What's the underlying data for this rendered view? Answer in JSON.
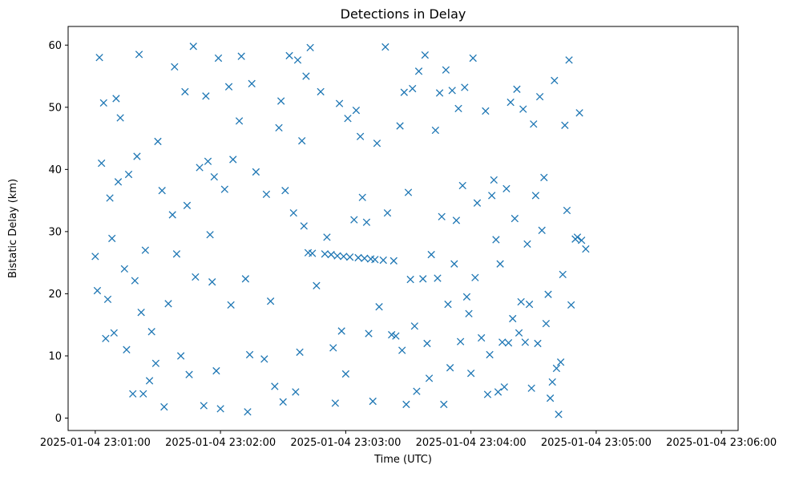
{
  "chart_data": {
    "type": "scatter",
    "title": "Detections in Delay",
    "xlabel": "Time (UTC)",
    "ylabel": "Bistatic Delay (km)",
    "marker": "x",
    "color": "#1f77b4",
    "grid": false,
    "xlim": [
      "2025-01-04 23:00:47",
      "2025-01-04 23:06:08"
    ],
    "ylim": [
      -2,
      63
    ],
    "xticks": [
      "2025-01-04 23:01:00",
      "2025-01-04 23:02:00",
      "2025-01-04 23:03:00",
      "2025-01-04 23:04:00",
      "2025-01-04 23:05:00",
      "2025-01-04 23:06:00"
    ],
    "yticks": [
      "0",
      "10",
      "20",
      "30",
      "40",
      "50",
      "60"
    ],
    "series": [
      {
        "points": [
          [
            "2025-01-04 23:01:00",
            26.0
          ],
          [
            "2025-01-04 23:01:01",
            20.5
          ],
          [
            "2025-01-04 23:01:02",
            58.0
          ],
          [
            "2025-01-04 23:01:04",
            50.7
          ],
          [
            "2025-01-04 23:01:03",
            41.0
          ],
          [
            "2025-01-04 23:01:05",
            12.8
          ],
          [
            "2025-01-04 23:01:06",
            19.1
          ],
          [
            "2025-01-04 23:01:07",
            35.4
          ],
          [
            "2025-01-04 23:01:08",
            28.9
          ],
          [
            "2025-01-04 23:01:09",
            13.7
          ],
          [
            "2025-01-04 23:01:10",
            51.4
          ],
          [
            "2025-01-04 23:01:11",
            38.0
          ],
          [
            "2025-01-04 23:01:12",
            48.3
          ],
          [
            "2025-01-04 23:01:14",
            24.0
          ],
          [
            "2025-01-04 23:01:15",
            11.0
          ],
          [
            "2025-01-04 23:01:16",
            39.2
          ],
          [
            "2025-01-04 23:01:18",
            3.9
          ],
          [
            "2025-01-04 23:01:19",
            22.1
          ],
          [
            "2025-01-04 23:01:20",
            42.1
          ],
          [
            "2025-01-04 23:01:21",
            58.5
          ],
          [
            "2025-01-04 23:01:22",
            17.0
          ],
          [
            "2025-01-04 23:01:23",
            3.9
          ],
          [
            "2025-01-04 23:01:24",
            27.0
          ],
          [
            "2025-01-04 23:01:26",
            6.0
          ],
          [
            "2025-01-04 23:01:27",
            13.9
          ],
          [
            "2025-01-04 23:01:29",
            8.8
          ],
          [
            "2025-01-04 23:01:30",
            44.5
          ],
          [
            "2025-01-04 23:01:32",
            36.6
          ],
          [
            "2025-01-04 23:01:33",
            1.8
          ],
          [
            "2025-01-04 23:01:35",
            18.4
          ],
          [
            "2025-01-04 23:01:37",
            32.7
          ],
          [
            "2025-01-04 23:01:38",
            56.5
          ],
          [
            "2025-01-04 23:01:39",
            26.4
          ],
          [
            "2025-01-04 23:01:41",
            10.0
          ],
          [
            "2025-01-04 23:01:43",
            52.5
          ],
          [
            "2025-01-04 23:01:44",
            34.2
          ],
          [
            "2025-01-04 23:01:45",
            7.0
          ],
          [
            "2025-01-04 23:01:47",
            59.8
          ],
          [
            "2025-01-04 23:01:48",
            22.7
          ],
          [
            "2025-01-04 23:01:50",
            40.3
          ],
          [
            "2025-01-04 23:01:52",
            2.0
          ],
          [
            "2025-01-04 23:01:53",
            51.8
          ],
          [
            "2025-01-04 23:01:54",
            41.3
          ],
          [
            "2025-01-04 23:01:55",
            29.5
          ],
          [
            "2025-01-04 23:01:56",
            21.9
          ],
          [
            "2025-01-04 23:01:57",
            38.8
          ],
          [
            "2025-01-04 23:01:58",
            7.6
          ],
          [
            "2025-01-04 23:01:59",
            57.9
          ],
          [
            "2025-01-04 23:02:00",
            1.5
          ],
          [
            "2025-01-04 23:02:02",
            36.8
          ],
          [
            "2025-01-04 23:02:04",
            53.3
          ],
          [
            "2025-01-04 23:02:05",
            18.2
          ],
          [
            "2025-01-04 23:02:06",
            41.6
          ],
          [
            "2025-01-04 23:02:09",
            47.8
          ],
          [
            "2025-01-04 23:02:10",
            58.2
          ],
          [
            "2025-01-04 23:02:12",
            22.4
          ],
          [
            "2025-01-04 23:02:13",
            1.0
          ],
          [
            "2025-01-04 23:02:14",
            10.2
          ],
          [
            "2025-01-04 23:02:15",
            53.8
          ],
          [
            "2025-01-04 23:02:17",
            39.6
          ],
          [
            "2025-01-04 23:02:21",
            9.5
          ],
          [
            "2025-01-04 23:02:22",
            36.0
          ],
          [
            "2025-01-04 23:02:24",
            18.8
          ],
          [
            "2025-01-04 23:02:26",
            5.1
          ],
          [
            "2025-01-04 23:02:28",
            46.7
          ],
          [
            "2025-01-04 23:02:29",
            51.0
          ],
          [
            "2025-01-04 23:02:30",
            2.6
          ],
          [
            "2025-01-04 23:02:31",
            36.6
          ],
          [
            "2025-01-04 23:02:33",
            58.3
          ],
          [
            "2025-01-04 23:02:35",
            33.0
          ],
          [
            "2025-01-04 23:02:36",
            4.2
          ],
          [
            "2025-01-04 23:02:37",
            57.6
          ],
          [
            "2025-01-04 23:02:38",
            10.6
          ],
          [
            "2025-01-04 23:02:39",
            44.6
          ],
          [
            "2025-01-04 23:02:40",
            30.9
          ],
          [
            "2025-01-04 23:02:41",
            55.0
          ],
          [
            "2025-01-04 23:02:42",
            26.6
          ],
          [
            "2025-01-04 23:02:43",
            59.6
          ],
          [
            "2025-01-04 23:02:44",
            26.5
          ],
          [
            "2025-01-04 23:02:46",
            21.3
          ],
          [
            "2025-01-04 23:02:48",
            52.5
          ],
          [
            "2025-01-04 23:02:50",
            26.4
          ],
          [
            "2025-01-04 23:02:51",
            29.1
          ],
          [
            "2025-01-04 23:02:53",
            26.3
          ],
          [
            "2025-01-04 23:02:54",
            11.3
          ],
          [
            "2025-01-04 23:02:55",
            2.4
          ],
          [
            "2025-01-04 23:02:56",
            26.1
          ],
          [
            "2025-01-04 23:02:57",
            50.6
          ],
          [
            "2025-01-04 23:02:58",
            14.0
          ],
          [
            "2025-01-04 23:02:59",
            26.0
          ],
          [
            "2025-01-04 23:03:00",
            7.1
          ],
          [
            "2025-01-04 23:03:01",
            48.2
          ],
          [
            "2025-01-04 23:03:02",
            25.9
          ],
          [
            "2025-01-04 23:03:04",
            31.9
          ],
          [
            "2025-01-04 23:03:05",
            49.5
          ],
          [
            "2025-01-04 23:03:06",
            25.8
          ],
          [
            "2025-01-04 23:03:07",
            45.3
          ],
          [
            "2025-01-04 23:03:08",
            35.5
          ],
          [
            "2025-01-04 23:03:09",
            25.7
          ],
          [
            "2025-01-04 23:03:10",
            31.5
          ],
          [
            "2025-01-04 23:03:11",
            13.6
          ],
          [
            "2025-01-04 23:03:12",
            25.6
          ],
          [
            "2025-01-04 23:03:13",
            2.7
          ],
          [
            "2025-01-04 23:03:14",
            25.5
          ],
          [
            "2025-01-04 23:03:15",
            44.2
          ],
          [
            "2025-01-04 23:03:16",
            17.9
          ],
          [
            "2025-01-04 23:03:18",
            25.4
          ],
          [
            "2025-01-04 23:03:19",
            59.7
          ],
          [
            "2025-01-04 23:03:20",
            33.0
          ],
          [
            "2025-01-04 23:03:22",
            13.4
          ],
          [
            "2025-01-04 23:03:23",
            25.3
          ],
          [
            "2025-01-04 23:03:24",
            13.2
          ],
          [
            "2025-01-04 23:03:26",
            47.0
          ],
          [
            "2025-01-04 23:03:27",
            10.9
          ],
          [
            "2025-01-04 23:03:28",
            52.4
          ],
          [
            "2025-01-04 23:03:29",
            2.2
          ],
          [
            "2025-01-04 23:03:30",
            36.3
          ],
          [
            "2025-01-04 23:03:31",
            22.3
          ],
          [
            "2025-01-04 23:03:32",
            53.0
          ],
          [
            "2025-01-04 23:03:33",
            14.8
          ],
          [
            "2025-01-04 23:03:34",
            4.3
          ],
          [
            "2025-01-04 23:03:35",
            55.8
          ],
          [
            "2025-01-04 23:03:37",
            22.4
          ],
          [
            "2025-01-04 23:03:38",
            58.4
          ],
          [
            "2025-01-04 23:03:39",
            12.0
          ],
          [
            "2025-01-04 23:03:40",
            6.4
          ],
          [
            "2025-01-04 23:03:41",
            26.3
          ],
          [
            "2025-01-04 23:03:43",
            46.3
          ],
          [
            "2025-01-04 23:03:44",
            22.5
          ],
          [
            "2025-01-04 23:03:45",
            52.3
          ],
          [
            "2025-01-04 23:03:46",
            32.4
          ],
          [
            "2025-01-04 23:03:47",
            2.2
          ],
          [
            "2025-01-04 23:03:48",
            56.0
          ],
          [
            "2025-01-04 23:03:49",
            18.3
          ],
          [
            "2025-01-04 23:03:50",
            8.1
          ],
          [
            "2025-01-04 23:03:51",
            52.7
          ],
          [
            "2025-01-04 23:03:52",
            24.8
          ],
          [
            "2025-01-04 23:03:53",
            31.8
          ],
          [
            "2025-01-04 23:03:54",
            49.8
          ],
          [
            "2025-01-04 23:03:55",
            12.3
          ],
          [
            "2025-01-04 23:03:56",
            37.4
          ],
          [
            "2025-01-04 23:03:57",
            53.2
          ],
          [
            "2025-01-04 23:03:58",
            19.5
          ],
          [
            "2025-01-04 23:03:59",
            16.8
          ],
          [
            "2025-01-04 23:04:00",
            7.2
          ],
          [
            "2025-01-04 23:04:01",
            57.9
          ],
          [
            "2025-01-04 23:04:02",
            22.6
          ],
          [
            "2025-01-04 23:04:03",
            34.6
          ],
          [
            "2025-01-04 23:04:05",
            12.9
          ],
          [
            "2025-01-04 23:04:07",
            49.4
          ],
          [
            "2025-01-04 23:04:08",
            3.8
          ],
          [
            "2025-01-04 23:04:09",
            10.2
          ],
          [
            "2025-01-04 23:04:10",
            35.8
          ],
          [
            "2025-01-04 23:04:11",
            38.3
          ],
          [
            "2025-01-04 23:04:12",
            28.7
          ],
          [
            "2025-01-04 23:04:13",
            4.2
          ],
          [
            "2025-01-04 23:04:14",
            24.8
          ],
          [
            "2025-01-04 23:04:15",
            12.2
          ],
          [
            "2025-01-04 23:04:16",
            5.0
          ],
          [
            "2025-01-04 23:04:17",
            36.9
          ],
          [
            "2025-01-04 23:04:18",
            12.1
          ],
          [
            "2025-01-04 23:04:19",
            50.8
          ],
          [
            "2025-01-04 23:04:20",
            16.0
          ],
          [
            "2025-01-04 23:04:21",
            32.1
          ],
          [
            "2025-01-04 23:04:22",
            52.9
          ],
          [
            "2025-01-04 23:04:23",
            13.7
          ],
          [
            "2025-01-04 23:04:24",
            18.7
          ],
          [
            "2025-01-04 23:04:25",
            49.7
          ],
          [
            "2025-01-04 23:04:26",
            12.2
          ],
          [
            "2025-01-04 23:04:27",
            28.0
          ],
          [
            "2025-01-04 23:04:28",
            18.3
          ],
          [
            "2025-01-04 23:04:29",
            4.8
          ],
          [
            "2025-01-04 23:04:30",
            47.3
          ],
          [
            "2025-01-04 23:04:31",
            35.8
          ],
          [
            "2025-01-04 23:04:32",
            12.0
          ],
          [
            "2025-01-04 23:04:33",
            51.7
          ],
          [
            "2025-01-04 23:04:34",
            30.2
          ],
          [
            "2025-01-04 23:04:35",
            38.7
          ],
          [
            "2025-01-04 23:04:36",
            15.2
          ],
          [
            "2025-01-04 23:04:37",
            19.9
          ],
          [
            "2025-01-04 23:04:38",
            3.2
          ],
          [
            "2025-01-04 23:04:39",
            5.8
          ],
          [
            "2025-01-04 23:04:40",
            54.3
          ],
          [
            "2025-01-04 23:04:41",
            8.0
          ],
          [
            "2025-01-04 23:04:42",
            0.6
          ],
          [
            "2025-01-04 23:04:43",
            9.0
          ],
          [
            "2025-01-04 23:04:44",
            23.1
          ],
          [
            "2025-01-04 23:04:45",
            47.1
          ],
          [
            "2025-01-04 23:04:46",
            33.4
          ],
          [
            "2025-01-04 23:04:47",
            57.6
          ],
          [
            "2025-01-04 23:04:48",
            18.2
          ],
          [
            "2025-01-04 23:04:50",
            28.8
          ],
          [
            "2025-01-04 23:04:51",
            29.1
          ],
          [
            "2025-01-04 23:04:52",
            49.1
          ],
          [
            "2025-01-04 23:04:53",
            28.6
          ],
          [
            "2025-01-04 23:04:55",
            27.2
          ]
        ]
      }
    ]
  }
}
